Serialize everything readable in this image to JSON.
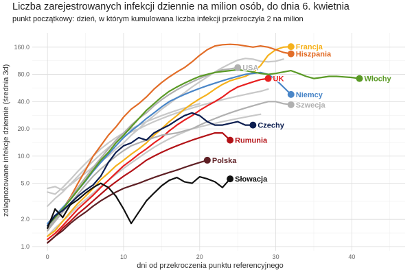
{
  "chart_data": {
    "type": "line",
    "title": "Liczba zarejestrowanych infekcji dziennie na milion osób, do dnia 6. kwietnia",
    "subtitle": "punkt początkowy: dzień, w którym kumulowana liczba infekcji przekroczyła 2 na milion",
    "xlabel": "dni od przekroczenia punktu referencyjnego",
    "ylabel": "zdiagnozowane infekcje dziennie (średnia 3d)",
    "x_ticks": [
      0,
      10,
      20,
      30,
      40
    ],
    "y_ticks": [
      1.0,
      2.0,
      5.0,
      10.0,
      20.0,
      40.0,
      80.0,
      160.0
    ],
    "y_tick_labels": [
      "1.0",
      "2.0",
      "5.0",
      "10.0",
      "20.0",
      "40.0",
      "80.0",
      "160.0"
    ],
    "y_scale": "log",
    "xlim": [
      -2,
      47
    ],
    "ylim": [
      0.9,
      230
    ],
    "grid": true,
    "highlighted": [
      {
        "name": "Francja",
        "color": "#f5b11c",
        "x": [
          0,
          1,
          2,
          3,
          4,
          5,
          6,
          7,
          8,
          9,
          10,
          11,
          12,
          13,
          14,
          15,
          16,
          17,
          18,
          19,
          20,
          21,
          22,
          23,
          24,
          25,
          26,
          27,
          28,
          29,
          30,
          31,
          32
        ],
        "y": [
          1.3,
          1.5,
          1.9,
          2.4,
          3.0,
          3.6,
          4.4,
          5.5,
          6.5,
          7.8,
          9.0,
          10.5,
          12,
          14,
          17,
          20,
          24,
          28,
          33,
          38,
          43,
          48,
          55,
          62,
          68,
          72,
          76,
          84,
          100,
          130,
          150,
          160,
          162
        ]
      },
      {
        "name": "Hiszpania",
        "color": "#e26d28",
        "x": [
          0,
          1,
          2,
          3,
          4,
          5,
          6,
          7,
          8,
          9,
          10,
          11,
          12,
          13,
          14,
          15,
          16,
          17,
          18,
          19,
          20,
          21,
          22,
          23,
          24,
          25,
          26,
          27,
          28,
          29,
          30,
          31,
          32
        ],
        "y": [
          1.5,
          2.0,
          2.6,
          3.5,
          5.0,
          7.0,
          10,
          13,
          17,
          21,
          27,
          33,
          38,
          45,
          55,
          65,
          75,
          85,
          95,
          110,
          130,
          150,
          165,
          170,
          172,
          170,
          165,
          160,
          165,
          160,
          150,
          140,
          135
        ]
      },
      {
        "name": "USA",
        "color": "#b0b0b0",
        "x": [
          0,
          1,
          2,
          3,
          4,
          5,
          6,
          7,
          8,
          9,
          10,
          11,
          12,
          13,
          14,
          15,
          16,
          17,
          18,
          19,
          20,
          21,
          22,
          23,
          24,
          25
        ],
        "y": [
          1.6,
          2.0,
          2.6,
          3.4,
          4.5,
          5.8,
          7.5,
          9.5,
          12,
          15,
          18,
          22,
          26,
          30,
          36,
          42,
          48,
          54,
          60,
          66,
          72,
          78,
          84,
          90,
          92,
          95
        ]
      },
      {
        "name": "UK",
        "color": "#e82020",
        "x": [
          0,
          1,
          2,
          3,
          4,
          5,
          6,
          7,
          8,
          9,
          10,
          11,
          12,
          13,
          14,
          15,
          16,
          17,
          18,
          19,
          20,
          21,
          22,
          23,
          24,
          25,
          26,
          27,
          28,
          29
        ],
        "y": [
          1.2,
          1.4,
          1.7,
          2.1,
          2.6,
          3.1,
          3.7,
          4.5,
          5.4,
          6.5,
          7.8,
          9.0,
          10.5,
          12,
          14,
          16,
          19,
          22,
          25,
          28,
          32,
          36,
          40,
          45,
          52,
          58,
          62,
          66,
          70,
          72
        ]
      },
      {
        "name": "Niemcy",
        "color": "#4a86c8",
        "x": [
          0,
          1,
          2,
          3,
          4,
          5,
          6,
          7,
          8,
          9,
          10,
          11,
          12,
          13,
          14,
          15,
          16,
          17,
          18,
          19,
          20,
          21,
          22,
          23,
          24,
          25,
          26,
          27,
          28,
          29,
          30,
          31,
          32
        ],
        "y": [
          1.8,
          2.2,
          2.7,
          3.3,
          4.2,
          5.3,
          6.8,
          8.5,
          10.5,
          13,
          16,
          19,
          22,
          26,
          30,
          35,
          40,
          44,
          48,
          52,
          56,
          60,
          64,
          68,
          72,
          76,
          80,
          82,
          84,
          80,
          70,
          58,
          48
        ]
      },
      {
        "name": "Szwecja",
        "color": "#b0b0b0",
        "x": [
          0,
          1,
          2,
          3,
          4,
          5,
          6,
          7,
          8,
          9,
          10,
          11,
          12,
          13,
          14,
          15,
          16,
          17,
          18,
          19,
          20,
          21,
          22,
          23,
          24,
          25,
          26,
          27,
          28,
          29,
          30,
          31,
          32
        ],
        "y": [
          1.5,
          1.9,
          2.4,
          3.0,
          3.8,
          4.8,
          6.0,
          7.2,
          8.5,
          10,
          11.5,
          13,
          14,
          15,
          16,
          17,
          17.5,
          18,
          19,
          20,
          22,
          24,
          26,
          28,
          30,
          32,
          34,
          36,
          38,
          40,
          40,
          38,
          37
        ]
      },
      {
        "name": "Włochy",
        "color": "#5a9a26",
        "x": [
          0,
          1,
          2,
          3,
          4,
          5,
          6,
          7,
          8,
          9,
          10,
          11,
          12,
          13,
          14,
          15,
          16,
          17,
          18,
          19,
          20,
          21,
          22,
          23,
          24,
          25,
          26,
          27,
          28,
          29,
          30,
          31,
          32,
          33,
          34,
          35,
          36,
          37,
          38,
          39,
          40,
          41
        ],
        "y": [
          1.7,
          2.1,
          2.6,
          3.3,
          4.2,
          5.4,
          7.0,
          9.0,
          11,
          14,
          17,
          21,
          26,
          32,
          38,
          45,
          52,
          58,
          64,
          70,
          76,
          80,
          84,
          86,
          88,
          90,
          88,
          85,
          82,
          80,
          82,
          85,
          88,
          82,
          76,
          72,
          74,
          76,
          76,
          75,
          74,
          72
        ]
      },
      {
        "name": "Czechy",
        "color": "#0b1d4f",
        "x": [
          0,
          1,
          2,
          3,
          4,
          5,
          6,
          7,
          8,
          9,
          10,
          11,
          12,
          13,
          14,
          15,
          16,
          17,
          18,
          19,
          20,
          21,
          22,
          23,
          24,
          25,
          26,
          27
        ],
        "y": [
          1.7,
          2.2,
          2.5,
          3.0,
          3.6,
          4.2,
          4.8,
          6.0,
          8.5,
          11,
          13,
          14,
          16,
          15,
          18,
          20,
          22,
          25,
          28,
          30,
          28,
          24,
          22,
          22,
          23,
          24,
          22,
          22
        ]
      },
      {
        "name": "Rumunia",
        "color": "#b31217",
        "x": [
          0,
          1,
          2,
          3,
          4,
          5,
          6,
          7,
          8,
          9,
          10,
          11,
          12,
          13,
          14,
          15,
          16,
          17,
          18,
          19,
          20,
          21,
          22,
          23,
          24
        ],
        "y": [
          1.1,
          1.3,
          1.6,
          1.9,
          2.3,
          2.7,
          3.2,
          3.8,
          4.5,
          5.2,
          6.0,
          6.8,
          7.8,
          9.0,
          10,
          11,
          12,
          13,
          14,
          15,
          16,
          17,
          18,
          18,
          15
        ]
      },
      {
        "name": "Polska",
        "color": "#5e1f24",
        "x": [
          0,
          1,
          2,
          3,
          4,
          5,
          6,
          7,
          8,
          9,
          10,
          11,
          12,
          13,
          14,
          15,
          16,
          17,
          18,
          19,
          20,
          21
        ],
        "y": [
          1.1,
          1.3,
          1.5,
          1.8,
          2.1,
          2.4,
          2.8,
          3.2,
          3.6,
          4.0,
          4.4,
          4.7,
          5.0,
          5.4,
          5.8,
          6.2,
          6.6,
          7.0,
          7.5,
          8.0,
          8.5,
          9.0
        ]
      },
      {
        "name": "Słowacja",
        "color": "#111111",
        "x": [
          0,
          1,
          2,
          3,
          4,
          5,
          6,
          7,
          8,
          9,
          10,
          11,
          12,
          13,
          14,
          15,
          16,
          17,
          18,
          19,
          20,
          21,
          22,
          23,
          24
        ],
        "y": [
          1.6,
          2.6,
          2.1,
          2.9,
          3.3,
          3.9,
          4.5,
          5.0,
          4.5,
          3.6,
          2.6,
          1.8,
          2.4,
          3.2,
          3.9,
          4.7,
          5.4,
          5.8,
          5.2,
          5.0,
          5.9,
          5.6,
          5.2,
          4.5,
          5.6
        ]
      }
    ],
    "background": [
      {
        "color": "#c8c8c8",
        "x": [
          0,
          1,
          2,
          3,
          4,
          5,
          6,
          7,
          8,
          9,
          10,
          11,
          12,
          13,
          14,
          15,
          16,
          17,
          18,
          19,
          20,
          21,
          22,
          23,
          24,
          25,
          26,
          27,
          28,
          29,
          30,
          31
        ],
        "y": [
          4.4,
          4.6,
          4.2,
          4.8,
          5.6,
          6.5,
          7.6,
          8.8,
          10,
          12,
          14,
          17,
          20,
          24,
          28,
          33,
          38,
          44,
          50,
          58,
          66,
          75,
          85,
          95,
          105,
          115,
          120,
          118,
          112,
          110,
          112,
          118
        ]
      },
      {
        "color": "#c8c8c8",
        "x": [
          0,
          1,
          2,
          3,
          4,
          5,
          6,
          7,
          8,
          9,
          10,
          11,
          12,
          13,
          14,
          15,
          16,
          17,
          18,
          19,
          20,
          21,
          22,
          23,
          24,
          25,
          26,
          27,
          28,
          29
        ],
        "y": [
          2.8,
          3.4,
          4.0,
          4.9,
          6.0,
          7.3,
          8.8,
          10.5,
          12.4,
          14.5,
          16.5,
          18.5,
          20,
          22,
          24,
          26,
          28,
          30,
          32,
          34,
          36,
          38,
          40,
          42,
          44,
          46,
          48,
          50,
          52,
          55
        ]
      },
      {
        "color": "#c8c8c8",
        "x": [
          0,
          1,
          2,
          3,
          4,
          5,
          6,
          7,
          8,
          9,
          10,
          11,
          12,
          13,
          14,
          15,
          16,
          17,
          18,
          19,
          20,
          21,
          22,
          23,
          24,
          25,
          26,
          27,
          28
        ],
        "y": [
          1.3,
          1.6,
          1.9,
          2.3,
          2.8,
          3.3,
          3.9,
          4.6,
          5.4,
          6.3,
          7.3,
          8.4,
          9.6,
          11,
          12.5,
          14,
          15.5,
          17,
          18.5,
          20,
          21,
          22,
          23,
          24,
          25,
          26,
          27,
          28,
          29
        ]
      },
      {
        "color": "#c8c8c8",
        "x": [
          0,
          1,
          2,
          3,
          4,
          5,
          6,
          7,
          8,
          9,
          10,
          11,
          12,
          13,
          14,
          15,
          16,
          17,
          18,
          19,
          20
        ],
        "y": [
          4.0,
          3.8,
          4.5,
          5.5,
          6.8,
          8.3,
          10,
          12,
          14,
          16,
          18,
          20,
          22,
          24,
          26,
          28,
          30,
          32,
          34,
          36,
          38
        ]
      }
    ]
  }
}
